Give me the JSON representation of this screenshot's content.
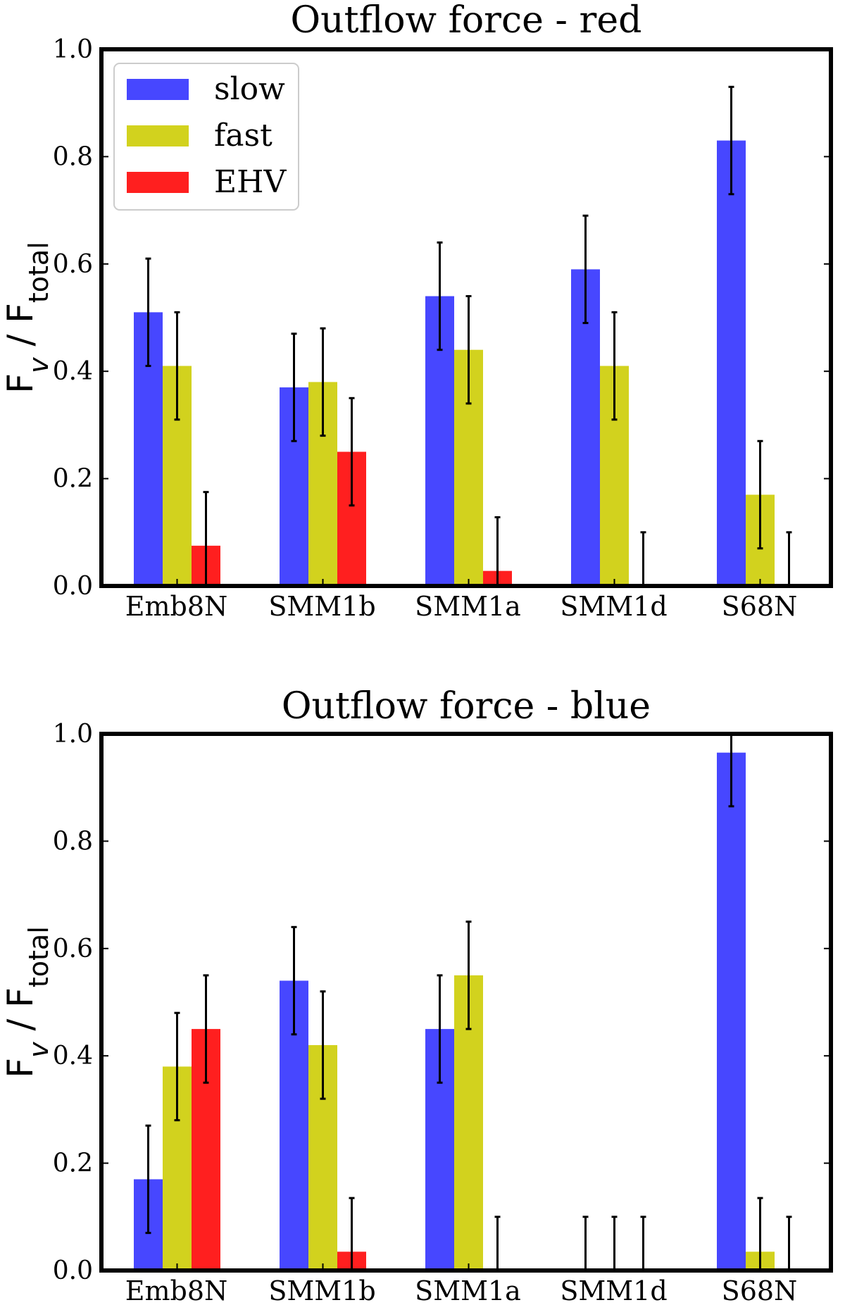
{
  "chart_data": [
    {
      "type": "bar",
      "title": "Outflow force - red",
      "ylabel": "F_v / F_total",
      "xlabel": "",
      "ylim": [
        0,
        1.0
      ],
      "yticks": [
        "0.0",
        "0.2",
        "0.4",
        "0.6",
        "0.8",
        "1.0"
      ],
      "categories": [
        "Emb8N",
        "SMM1b",
        "SMM1a",
        "SMM1d",
        "S68N"
      ],
      "legend": {
        "position": "top-left"
      },
      "series": [
        {
          "name": "slow",
          "color": "#4747ff",
          "values": [
            0.51,
            0.37,
            0.54,
            0.59,
            0.83
          ],
          "errors": [
            0.1,
            0.1,
            0.1,
            0.1,
            0.1
          ]
        },
        {
          "name": "fast",
          "color": "#d2d21e",
          "values": [
            0.41,
            0.38,
            0.44,
            0.41,
            0.17
          ],
          "errors": [
            0.1,
            0.1,
            0.1,
            0.1,
            0.1
          ]
        },
        {
          "name": "EHV",
          "color": "#ff1f1f",
          "values": [
            0.075,
            0.25,
            0.028,
            0.0,
            0.0
          ],
          "errors": [
            0.1,
            0.1,
            0.1,
            0.1,
            0.1
          ]
        }
      ]
    },
    {
      "type": "bar",
      "title": "Outflow force - blue",
      "ylabel": "F_v / F_total",
      "xlabel": "",
      "ylim": [
        0,
        1.0
      ],
      "yticks": [
        "0.0",
        "0.2",
        "0.4",
        "0.6",
        "0.8",
        "1.0"
      ],
      "categories": [
        "Emb8N",
        "SMM1b",
        "SMM1a",
        "SMM1d",
        "S68N"
      ],
      "series": [
        {
          "name": "slow",
          "color": "#4747ff",
          "values": [
            0.17,
            0.54,
            0.45,
            0.0,
            0.965
          ],
          "errors": [
            0.1,
            0.1,
            0.1,
            0.1,
            0.1
          ]
        },
        {
          "name": "fast",
          "color": "#d2d21e",
          "values": [
            0.38,
            0.42,
            0.55,
            0.0,
            0.035
          ],
          "errors": [
            0.1,
            0.1,
            0.1,
            0.1,
            0.1
          ]
        },
        {
          "name": "EHV",
          "color": "#ff1f1f",
          "values": [
            0.45,
            0.035,
            0.0,
            0.0,
            0.0
          ],
          "errors": [
            0.1,
            0.1,
            0.1,
            0.1,
            0.1
          ]
        }
      ]
    }
  ]
}
